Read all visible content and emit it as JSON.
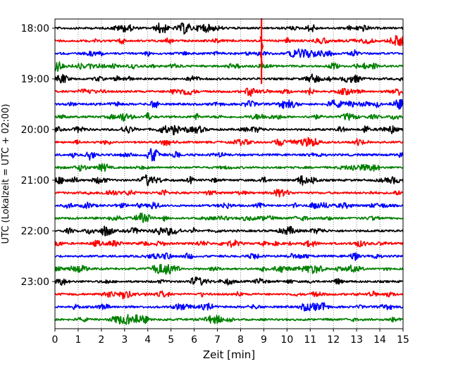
{
  "chart_data": {
    "type": "line",
    "title": "",
    "xlabel": "Zeit  [min]",
    "ylabel": "UTC (Lokalzeit = UTC + 02:00)",
    "xlim": [
      0,
      15
    ],
    "xticks": [
      "0",
      "1",
      "2",
      "3",
      "4",
      "5",
      "6",
      "7",
      "8",
      "9",
      "10",
      "11",
      "12",
      "13",
      "14",
      "15"
    ],
    "yticks": [
      {
        "label": "18:00",
        "trace_index": 0
      },
      {
        "label": "19:00",
        "trace_index": 4
      },
      {
        "label": "20:00",
        "trace_index": 8
      },
      {
        "label": "21:00",
        "trace_index": 12
      },
      {
        "label": "22:00",
        "trace_index": 16
      },
      {
        "label": "23:00",
        "trace_index": 20
      }
    ],
    "grid": "vertical dotted lines at each minute",
    "color_cycle": [
      "#000000",
      "#ff0000",
      "#0000ff",
      "#008000"
    ],
    "trace_minutes": 15,
    "traces": [
      {
        "start": "18:00",
        "color": "#000000"
      },
      {
        "start": "18:15",
        "color": "#ff0000"
      },
      {
        "start": "18:30",
        "color": "#0000ff"
      },
      {
        "start": "18:45",
        "color": "#008000"
      },
      {
        "start": "19:00",
        "color": "#000000"
      },
      {
        "start": "19:15",
        "color": "#ff0000"
      },
      {
        "start": "19:30",
        "color": "#0000ff"
      },
      {
        "start": "19:45",
        "color": "#008000"
      },
      {
        "start": "20:00",
        "color": "#000000"
      },
      {
        "start": "20:15",
        "color": "#ff0000"
      },
      {
        "start": "20:30",
        "color": "#0000ff"
      },
      {
        "start": "20:45",
        "color": "#008000"
      },
      {
        "start": "21:00",
        "color": "#000000"
      },
      {
        "start": "21:15",
        "color": "#ff0000"
      },
      {
        "start": "21:30",
        "color": "#0000ff"
      },
      {
        "start": "21:45",
        "color": "#008000"
      },
      {
        "start": "22:00",
        "color": "#000000"
      },
      {
        "start": "22:15",
        "color": "#ff0000"
      },
      {
        "start": "22:30",
        "color": "#0000ff"
      },
      {
        "start": "22:45",
        "color": "#008000"
      },
      {
        "start": "23:00",
        "color": "#000000"
      },
      {
        "start": "23:15",
        "color": "#ff0000"
      },
      {
        "start": "23:30",
        "color": "#0000ff"
      },
      {
        "start": "23:45",
        "color": "#008000"
      }
    ],
    "events": [
      {
        "trace_start": "18:15",
        "minute": 8.9,
        "description": "large spike"
      }
    ]
  }
}
